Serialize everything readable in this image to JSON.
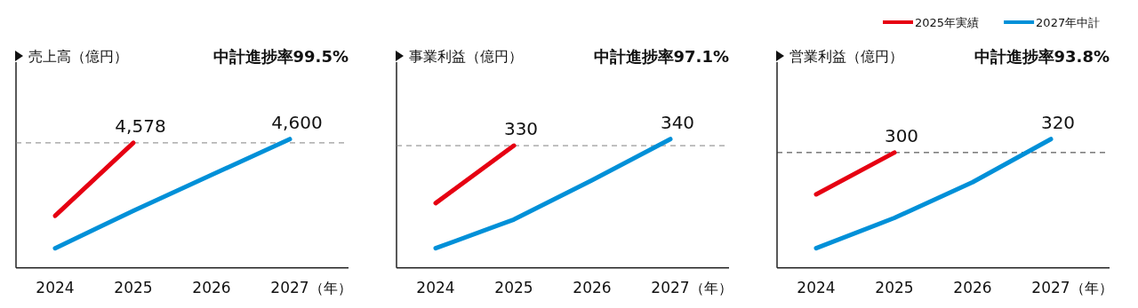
{
  "chart_data": [
    {
      "type": "line",
      "title": "売上高（億円）",
      "subtitle": "中計進捗率99.5%",
      "xlabel": "（年）",
      "categories": [
        "2024",
        "2025",
        "2026",
        "2027"
      ],
      "marker": "none",
      "series": [
        {
          "color": "#e60012",
          "values": [
            4150,
            4578,
            null,
            null
          ],
          "value_labels": [
            null,
            "4,578",
            null,
            null
          ]
        },
        {
          "color": "#0090d8",
          "values": [
            3960,
            4180,
            4390,
            4600
          ],
          "value_labels": [
            null,
            null,
            null,
            "4,600"
          ]
        }
      ],
      "ref_lines": [
        {
          "axis": "y",
          "value": 4578,
          "color": "#808080",
          "line_style": "dashed"
        }
      ]
    },
    {
      "type": "line",
      "title": "事業利益（億円）",
      "subtitle": "中計進捗率97.1%",
      "xlabel": "（年）",
      "categories": [
        "2024",
        "2025",
        "2026",
        "2027"
      ],
      "marker": "none",
      "series": [
        {
          "color": "#e60012",
          "values": [
            242,
            330,
            null,
            null
          ],
          "value_labels": [
            null,
            "330",
            null,
            null
          ]
        },
        {
          "color": "#0090d8",
          "values": [
            173,
            217,
            277,
            340
          ],
          "value_labels": [
            null,
            null,
            null,
            "340"
          ]
        }
      ],
      "ref_lines": [
        {
          "axis": "y",
          "value": 330,
          "color": "#808080",
          "line_style": "dashed"
        }
      ]
    },
    {
      "type": "line",
      "title": "営業利益（億円）",
      "subtitle": "中計進捗率93.8%",
      "xlabel": "（年）",
      "categories": [
        "2024",
        "2025",
        "2026",
        "2027"
      ],
      "marker": "none",
      "legend": "top right",
      "series": [
        {
          "name": "2025年実績",
          "color": "#e60012",
          "values": [
            238,
            300,
            null,
            null
          ],
          "value_labels": [
            null,
            "300",
            null,
            null
          ]
        },
        {
          "name": "2027年中計",
          "color": "#0090d8",
          "values": [
            158,
            203,
            256,
            320
          ],
          "value_labels": [
            null,
            null,
            null,
            "320"
          ]
        }
      ],
      "ref_lines": [
        {
          "axis": "y",
          "value": 300,
          "color": "#333333",
          "line_style": "dashed"
        }
      ]
    }
  ]
}
